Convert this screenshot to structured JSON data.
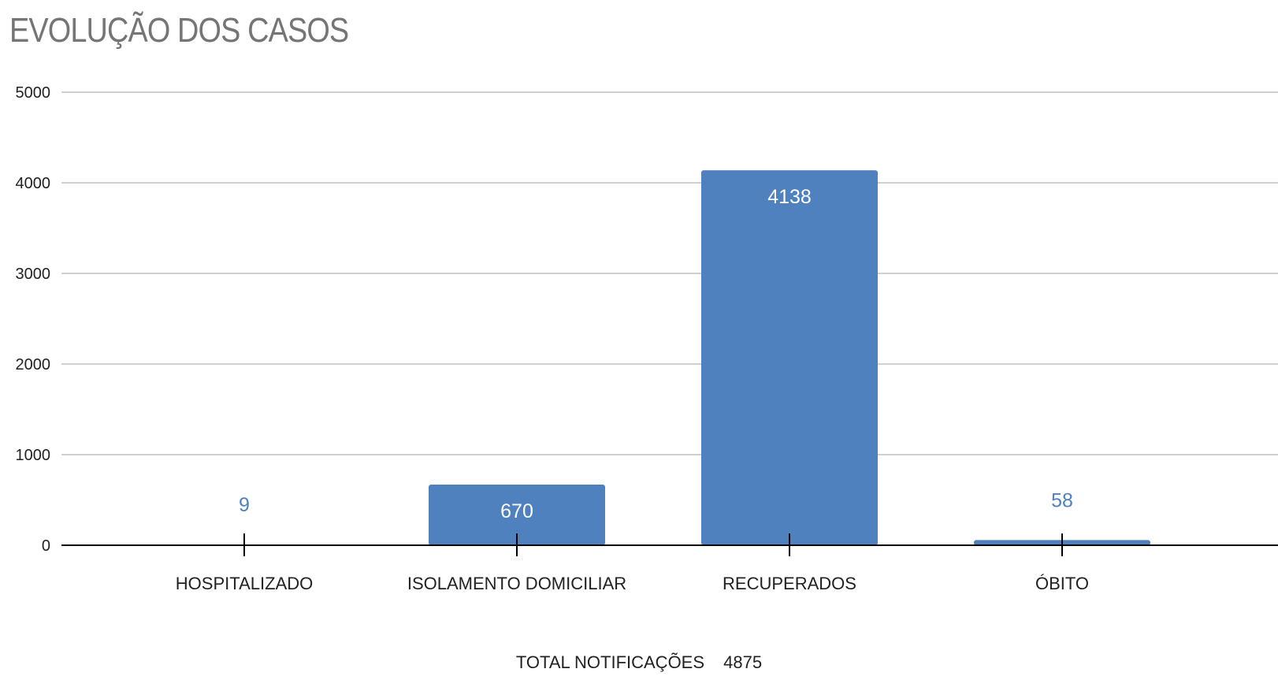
{
  "chart_data": {
    "type": "bar",
    "title": "EVOLUÇÃO DOS CASOS",
    "categories": [
      "HOSPITALIZADO",
      "ISOLAMENTO DOMICILIAR",
      "RECUPERADOS",
      "ÓBITO"
    ],
    "series": [
      {
        "values": [
          9,
          670,
          4138,
          58
        ]
      }
    ],
    "data_labels": [
      "9",
      "670",
      "4138",
      "58"
    ],
    "yticks": [
      0,
      1000,
      2000,
      3000,
      4000,
      5000
    ],
    "ylim": [
      0,
      5000
    ],
    "xlabel": "",
    "ylabel": "",
    "grid": true,
    "legend": "none",
    "bar_color": "#4e81bd",
    "label_color_inside": "#ffffff",
    "label_color_outside": "#4e81bd",
    "gridline_color": "#d0d0d0",
    "axis_color": "#000000",
    "title_color": "#757575"
  },
  "footer": {
    "label": "TOTAL NOTIFICAÇÕES",
    "value": "4875"
  }
}
